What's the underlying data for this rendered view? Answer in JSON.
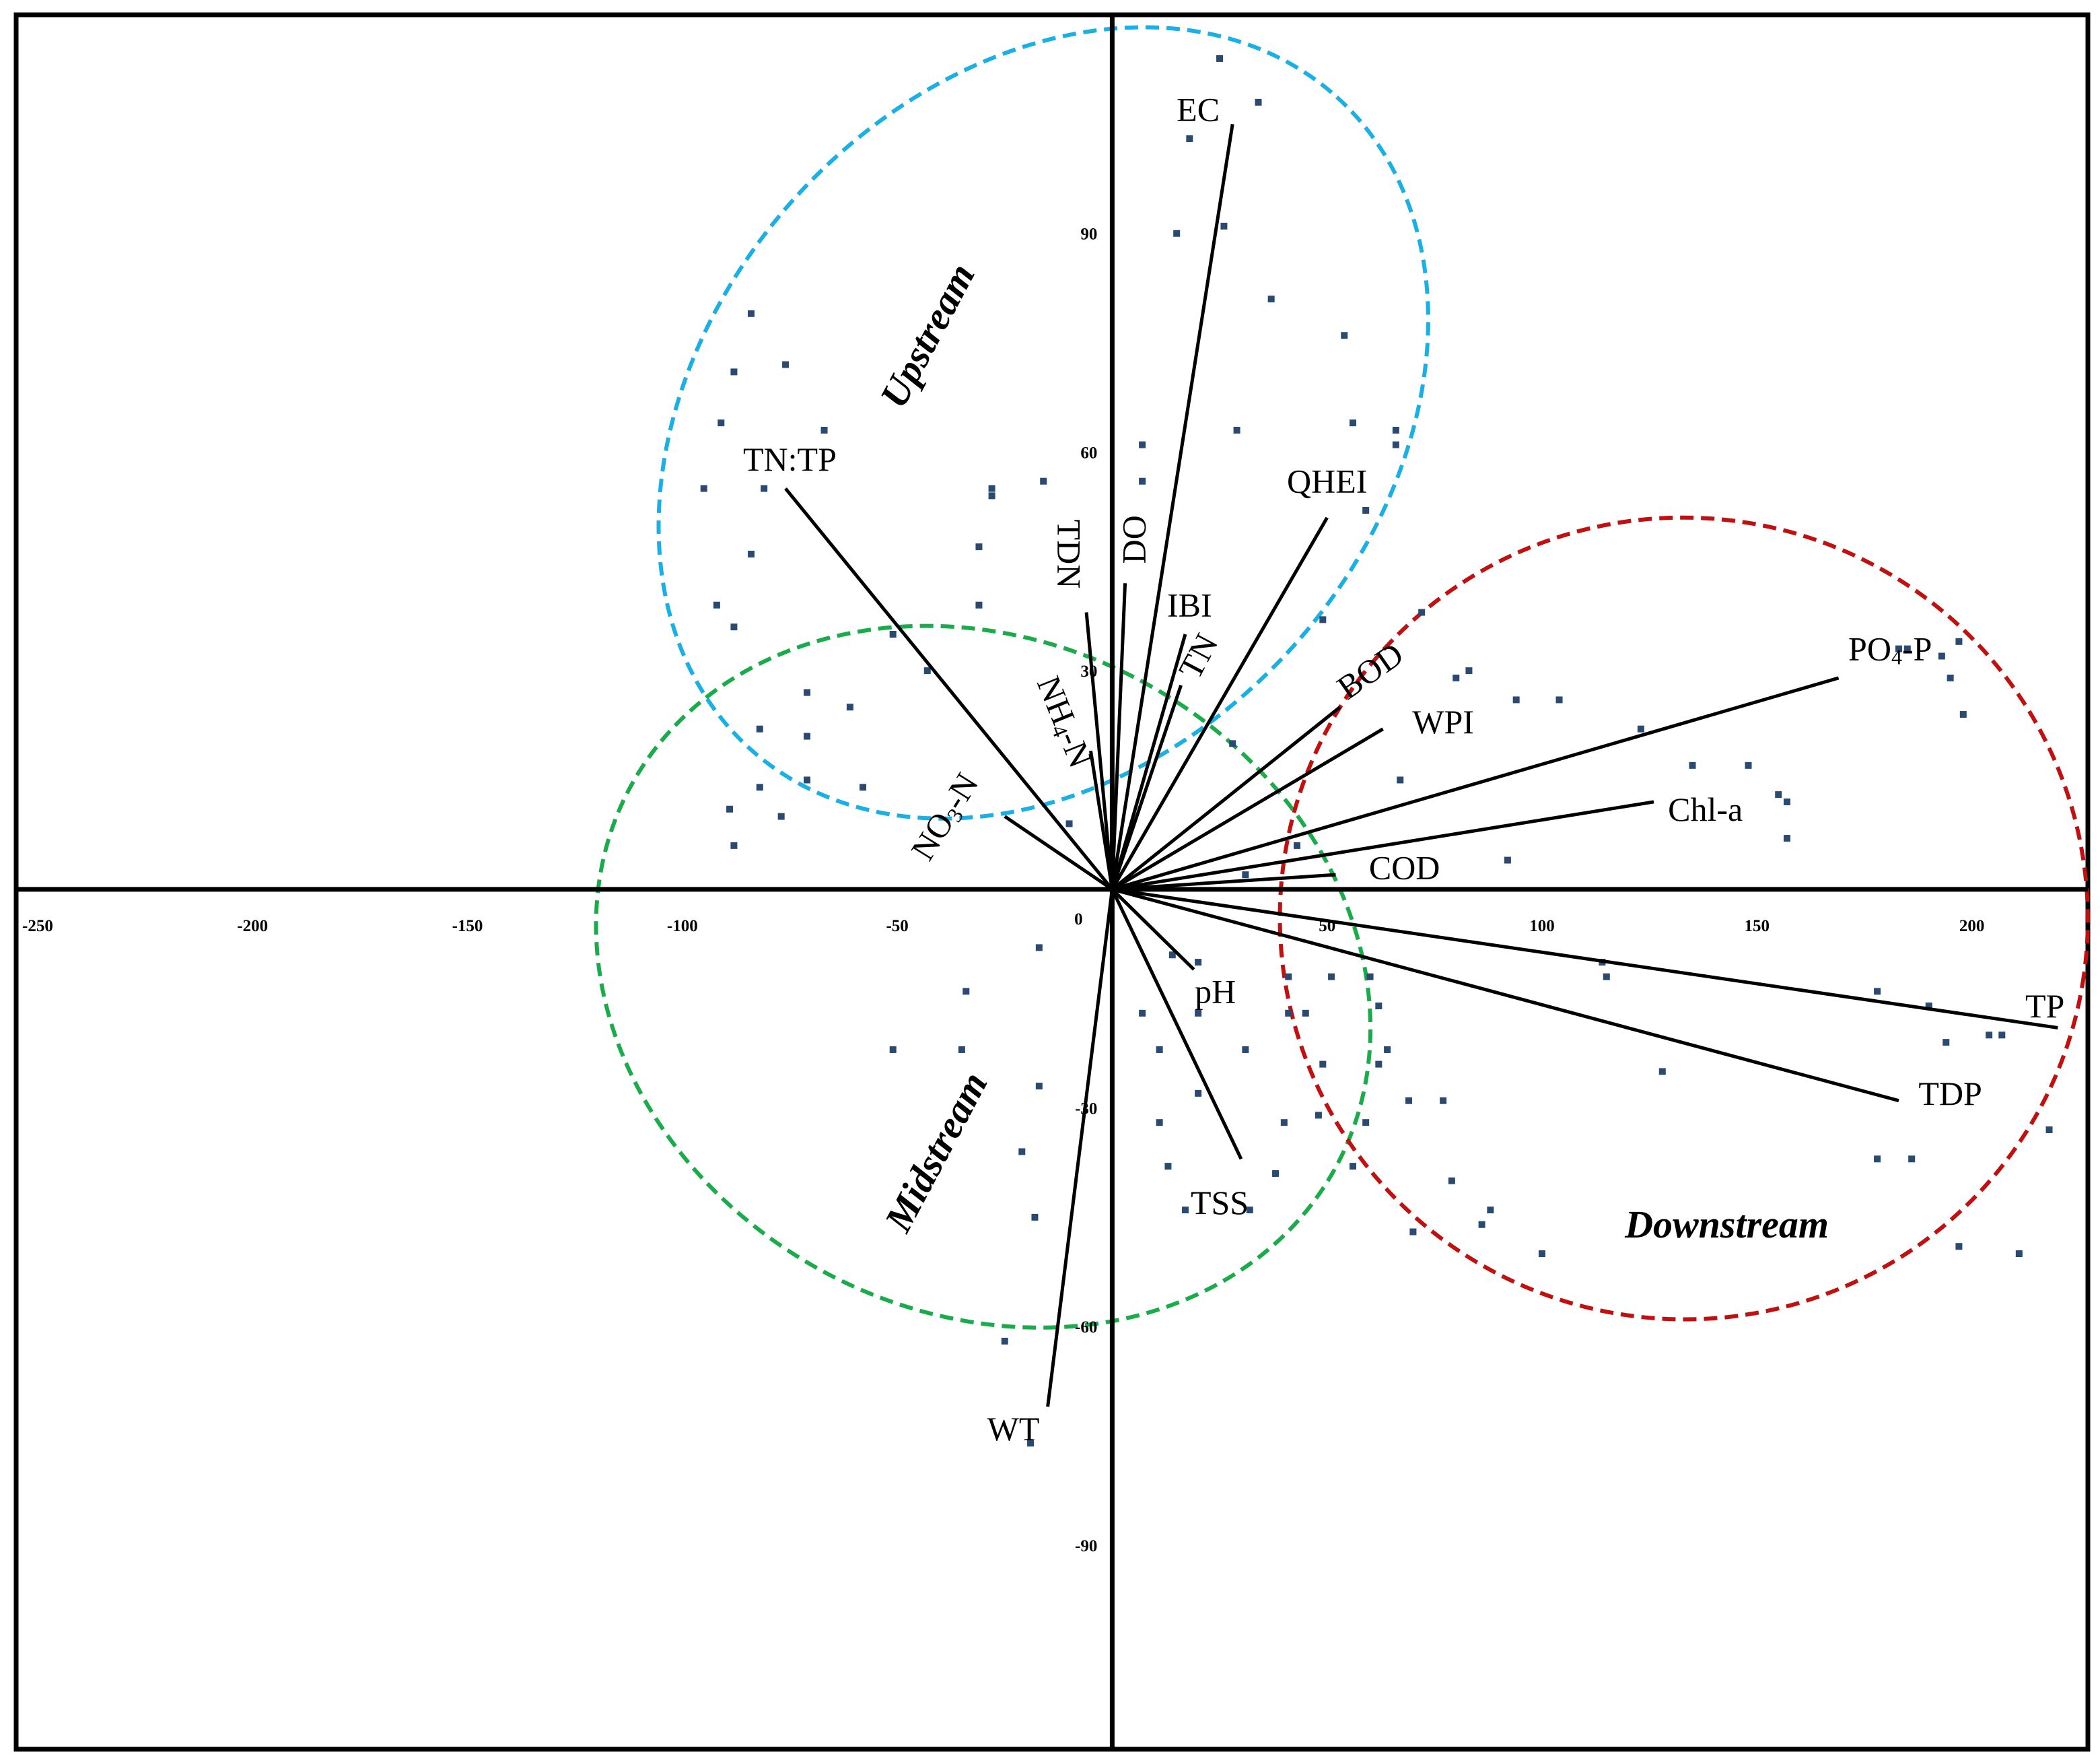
{
  "chart_data": {
    "type": "scatter",
    "subtype": "biplot",
    "title": "",
    "xlabel": "",
    "ylabel": "",
    "xlim": [
      -255,
      227
    ],
    "ylim": [
      -118,
      120
    ],
    "x_ticks": [
      "-250",
      "-200",
      "-150",
      "-100",
      "-50",
      "0",
      "50",
      "100",
      "150",
      "200"
    ],
    "y_ticks": [
      "90",
      "60",
      "30",
      "-30",
      "-60",
      "-90"
    ],
    "colors": {
      "upstream": "#1ab0e6",
      "midstream": "#1aab4b",
      "downstream": "#c01010",
      "points": "#2a4a72",
      "axes": "#000000"
    },
    "zones": [
      {
        "label": "Upstream",
        "cx": -16,
        "cy": 64,
        "rx": 102,
        "ry": 46,
        "angle": -48,
        "color": "#1ab0e6",
        "label_x": -43,
        "label_y": 76,
        "label_rotation": -62
      },
      {
        "label": "Midstream",
        "cx": -30,
        "cy": -12,
        "rx": 78,
        "ry": 55,
        "angle": -62,
        "color": "#1aab4b",
        "label_x": -41,
        "label_y": -36,
        "label_rotation": -62
      },
      {
        "label": "Downstream",
        "cx": 133,
        "cy": -4,
        "rx": 94,
        "ry": 55,
        "angle": 8,
        "color": "#c01010",
        "label_x": 143,
        "label_y": -46,
        "label_rotation": 0
      }
    ],
    "vectors": [
      {
        "label": "EC",
        "x": 28,
        "y": 105,
        "label_x": 20,
        "label_y": 107,
        "rotation": 0
      },
      {
        "label": "TN:TP",
        "x": -76,
        "y": 55,
        "label_x": -75,
        "label_y": 59,
        "rotation": 0
      },
      {
        "label": "QHEI",
        "x": 50,
        "y": 51,
        "label_x": 50,
        "label_y": 56,
        "rotation": 0
      },
      {
        "label": "TDN",
        "x": -6,
        "y": 38,
        "label_x": -10,
        "label_y": 46,
        "rotation": 90
      },
      {
        "label": "DO",
        "x": 3,
        "y": 42,
        "label_x": 5,
        "label_y": 48,
        "rotation": -90
      },
      {
        "label": "IBI",
        "x": 17,
        "y": 35,
        "label_x": 18,
        "label_y": 39,
        "rotation": 0
      },
      {
        "label": "TN",
        "x": 16,
        "y": 28,
        "label_x": 20,
        "label_y": 32,
        "rotation": -62
      },
      {
        "label": "NH4-N",
        "x": -5,
        "y": 19,
        "label_x": -11,
        "label_y": 23,
        "rotation": 68
      },
      {
        "label": "BOD",
        "x": 53,
        "y": 25,
        "label_x": 60,
        "label_y": 30,
        "rotation": -35
      },
      {
        "label": "WPI",
        "x": 63,
        "y": 22,
        "label_x": 77,
        "label_y": 23,
        "rotation": 0
      },
      {
        "label": "NO3-N",
        "x": -25,
        "y": 10,
        "label_x": -39,
        "label_y": 10,
        "rotation": -58
      },
      {
        "label": "PO4-P",
        "x": 169,
        "y": 29,
        "label_x": 181,
        "label_y": 33,
        "rotation": 0
      },
      {
        "label": "Chl-a",
        "x": 126,
        "y": 12,
        "label_x": 138,
        "label_y": 11,
        "rotation": 0
      },
      {
        "label": "COD",
        "x": 52,
        "y": 2,
        "label_x": 68,
        "label_y": 3,
        "rotation": 0
      },
      {
        "label": "pH",
        "x": 19,
        "y": -11,
        "label_x": 24,
        "label_y": -14,
        "rotation": 0
      },
      {
        "label": "TSS",
        "x": 30,
        "y": -37,
        "label_x": 25,
        "label_y": -43,
        "rotation": 0
      },
      {
        "label": "TP",
        "x": 220,
        "y": -19,
        "label_x": 217,
        "label_y": -16,
        "rotation": 0
      },
      {
        "label": "TDP",
        "x": 183,
        "y": -29,
        "label_x": 195,
        "label_y": -28,
        "rotation": 0
      },
      {
        "label": "WT",
        "x": -15,
        "y": -71,
        "label_x": -23,
        "label_y": -74,
        "rotation": 0
      }
    ],
    "points": [
      [
        25,
        114
      ],
      [
        34,
        108
      ],
      [
        18,
        103
      ],
      [
        26,
        91
      ],
      [
        15,
        90
      ],
      [
        37,
        81
      ],
      [
        54,
        76
      ],
      [
        -84,
        79
      ],
      [
        -88,
        71
      ],
      [
        -76,
        72
      ],
      [
        -67,
        63
      ],
      [
        -91,
        64
      ],
      [
        -95,
        55
      ],
      [
        -81,
        55
      ],
      [
        -84,
        46
      ],
      [
        -92,
        39
      ],
      [
        -88,
        36
      ],
      [
        -28,
        55
      ],
      [
        -28,
        54
      ],
      [
        -16,
        56
      ],
      [
        -31,
        47
      ],
      [
        -31,
        39
      ],
      [
        -51,
        35
      ],
      [
        -43,
        30
      ],
      [
        -71,
        27
      ],
      [
        -61,
        25
      ],
      [
        -82,
        22
      ],
      [
        -71,
        21
      ],
      [
        -82,
        14
      ],
      [
        -89,
        11
      ],
      [
        -71,
        15
      ],
      [
        -58,
        14
      ],
      [
        -77,
        10
      ],
      [
        -88,
        6
      ],
      [
        -10,
        9
      ],
      [
        7,
        61
      ],
      [
        7,
        56
      ],
      [
        29,
        63
      ],
      [
        56,
        64
      ],
      [
        66,
        63
      ],
      [
        66,
        61
      ],
      [
        59,
        52
      ],
      [
        49,
        37
      ],
      [
        72,
        38
      ],
      [
        83,
        30
      ],
      [
        94,
        26
      ],
      [
        80,
        29
      ],
      [
        104,
        26
      ],
      [
        123,
        22
      ],
      [
        135,
        17
      ],
      [
        148,
        17
      ],
      [
        155,
        13
      ],
      [
        157,
        12
      ],
      [
        185,
        33
      ],
      [
        183,
        33
      ],
      [
        197,
        34
      ],
      [
        193,
        32
      ],
      [
        195,
        29
      ],
      [
        198,
        24
      ],
      [
        157,
        7
      ],
      [
        67,
        15
      ],
      [
        28,
        20
      ],
      [
        43,
        6
      ],
      [
        31,
        2
      ],
      [
        92,
        4
      ],
      [
        -17,
        -8
      ],
      [
        -34,
        -14
      ],
      [
        -51,
        -22
      ],
      [
        -35,
        -22
      ],
      [
        -17,
        -27
      ],
      [
        -21,
        -36
      ],
      [
        -18,
        -45
      ],
      [
        -25,
        -62
      ],
      [
        -19,
        -76
      ],
      [
        14,
        -9
      ],
      [
        20,
        -10
      ],
      [
        20,
        -17
      ],
      [
        7,
        -17
      ],
      [
        11,
        -22
      ],
      [
        20,
        -28
      ],
      [
        11,
        -32
      ],
      [
        13,
        -38
      ],
      [
        17,
        -44
      ],
      [
        32,
        -44
      ],
      [
        38,
        -39
      ],
      [
        40,
        -32
      ],
      [
        31,
        -22
      ],
      [
        41,
        -17
      ],
      [
        45,
        -17
      ],
      [
        41,
        -12
      ],
      [
        51,
        -12
      ],
      [
        60,
        -12
      ],
      [
        62,
        -16
      ],
      [
        64,
        -22
      ],
      [
        49,
        -24
      ],
      [
        48,
        -31
      ],
      [
        62,
        -24
      ],
      [
        69,
        -29
      ],
      [
        77,
        -29
      ],
      [
        79,
        -40
      ],
      [
        86,
        -46
      ],
      [
        100,
        -50
      ],
      [
        115,
        -12
      ],
      [
        128,
        -25
      ],
      [
        178,
        -14
      ],
      [
        190,
        -16
      ],
      [
        194,
        -21
      ],
      [
        204,
        -20
      ],
      [
        178,
        -37
      ],
      [
        186,
        -37
      ],
      [
        197,
        -49
      ],
      [
        207,
        -20
      ],
      [
        218,
        -33
      ],
      [
        211,
        -50
      ],
      [
        114,
        -10
      ],
      [
        88,
        -44
      ],
      [
        70,
        -47
      ],
      [
        59,
        -32
      ],
      [
        56,
        -38
      ]
    ]
  }
}
